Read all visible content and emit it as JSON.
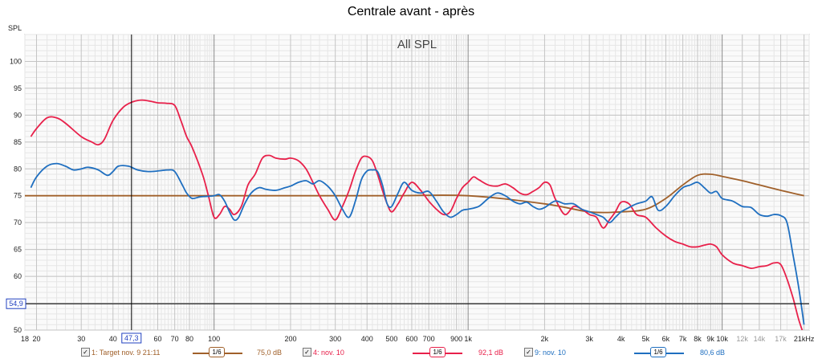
{
  "title": "Centrale avant - après",
  "chart_data": {
    "type": "line",
    "title": "Centrale avant - après",
    "subtitle": "All SPL",
    "ylabel": "SPL",
    "xlabel": "",
    "x_scale": "log",
    "x_unit_label": "Hz",
    "xlim": [
      18,
      22000
    ],
    "ylim": [
      50,
      105
    ],
    "grid": true,
    "y_ticks": [
      50,
      55,
      60,
      65,
      70,
      75,
      80,
      85,
      90,
      95,
      100
    ],
    "y_tick_labels": [
      "50",
      "55",
      "60",
      "65",
      "70",
      "75",
      "80",
      "85",
      "90",
      "95",
      "100"
    ],
    "x_ticks": [
      {
        "f": 18,
        "label": "18",
        "dim": false
      },
      {
        "f": 20,
        "label": "20",
        "dim": false
      },
      {
        "f": 30,
        "label": "30",
        "dim": false
      },
      {
        "f": 40,
        "label": "40",
        "dim": false
      },
      {
        "f": 60,
        "label": "60",
        "dim": false
      },
      {
        "f": 70,
        "label": "70",
        "dim": false
      },
      {
        "f": 80,
        "label": "80",
        "dim": false
      },
      {
        "f": 100,
        "label": "100",
        "dim": false
      },
      {
        "f": 200,
        "label": "200",
        "dim": false
      },
      {
        "f": 300,
        "label": "300",
        "dim": false
      },
      {
        "f": 400,
        "label": "400",
        "dim": false
      },
      {
        "f": 500,
        "label": "500",
        "dim": false
      },
      {
        "f": 600,
        "label": "600",
        "dim": false
      },
      {
        "f": 700,
        "label": "700",
        "dim": false
      },
      {
        "f": 900,
        "label": "900",
        "dim": false
      },
      {
        "f": 1000,
        "label": "1k",
        "dim": false
      },
      {
        "f": 2000,
        "label": "2k",
        "dim": false
      },
      {
        "f": 3000,
        "label": "3k",
        "dim": false
      },
      {
        "f": 4000,
        "label": "4k",
        "dim": false
      },
      {
        "f": 5000,
        "label": "5k",
        "dim": false
      },
      {
        "f": 6000,
        "label": "6k",
        "dim": false
      },
      {
        "f": 7000,
        "label": "7k",
        "dim": false
      },
      {
        "f": 8000,
        "label": "8k",
        "dim": false
      },
      {
        "f": 9000,
        "label": "9k",
        "dim": false
      },
      {
        "f": 10000,
        "label": "10k",
        "dim": false
      },
      {
        "f": 12000,
        "label": "12k",
        "dim": true
      },
      {
        "f": 14000,
        "label": "14k",
        "dim": true
      },
      {
        "f": 17000,
        "label": "17k",
        "dim": true
      },
      {
        "f": 21000,
        "label": "21kHz",
        "dim": false
      }
    ],
    "cursor": {
      "x": 47.3,
      "x_label": "47,3",
      "y": 54.9,
      "y_label": "54,9"
    },
    "series": [
      {
        "name": "1: Target nov. 9 21:11",
        "color": "#a0602a",
        "x": [
          18,
          20,
          30,
          50,
          100,
          200,
          500,
          1000,
          2000,
          3000,
          4000,
          5000,
          6000,
          7000,
          8000,
          9000,
          10000,
          12000,
          14000,
          17000,
          21000
        ],
        "y": [
          75,
          75,
          75,
          75,
          75,
          75,
          75,
          75,
          73.5,
          72,
          72,
          72.5,
          74.5,
          77,
          78.8,
          79,
          78.6,
          77.8,
          77,
          76,
          75
        ]
      },
      {
        "name": "4: nov. 10",
        "color": "#e8204a",
        "x": [
          19,
          20,
          22,
          24,
          26,
          30,
          33,
          35,
          37,
          40,
          44,
          48,
          52,
          56,
          60,
          65,
          70,
          74,
          78,
          82,
          90,
          95,
          100,
          105,
          110,
          115,
          120,
          128,
          136,
          145,
          155,
          165,
          175,
          190,
          200,
          215,
          230,
          245,
          260,
          280,
          300,
          320,
          340,
          360,
          380,
          400,
          420,
          440,
          460,
          480,
          500,
          530,
          560,
          600,
          650,
          700,
          750,
          800,
          850,
          900,
          950,
          1000,
          1050,
          1100,
          1200,
          1300,
          1400,
          1500,
          1600,
          1700,
          1800,
          1900,
          2000,
          2100,
          2200,
          2400,
          2600,
          2800,
          3000,
          3200,
          3400,
          3600,
          3800,
          4000,
          4300,
          4600,
          5000,
          5500,
          6000,
          6500,
          7000,
          7500,
          8000,
          8500,
          9000,
          9500,
          10000,
          11000,
          12000,
          13000,
          14000,
          15000,
          16000,
          17000,
          18000,
          19000,
          20000,
          21000
        ],
        "y": [
          86,
          87.5,
          89.5,
          89.5,
          88.5,
          86,
          85,
          84.5,
          85.5,
          89,
          91.5,
          92.5,
          92.8,
          92.6,
          92.3,
          92.2,
          91.8,
          89,
          86,
          84,
          79,
          75,
          71,
          71.5,
          73,
          72.5,
          71.5,
          73,
          77,
          79,
          82,
          82.5,
          82,
          81.8,
          82,
          81.5,
          80,
          77.5,
          75,
          72.5,
          70.5,
          73,
          76,
          79.5,
          82,
          82.3,
          81.5,
          79,
          76,
          73.5,
          72,
          73.5,
          75.5,
          77.5,
          76,
          74,
          72.5,
          71.5,
          72,
          74.5,
          76.5,
          77.5,
          78.5,
          78,
          77,
          76.8,
          77.2,
          76.5,
          75.5,
          75.2,
          75.8,
          76.5,
          77.5,
          77,
          74.5,
          71.5,
          73,
          72.5,
          71.5,
          71,
          69,
          70.5,
          72,
          73.8,
          73.5,
          71.5,
          71,
          69,
          67.5,
          66.5,
          66,
          65.5,
          65.5,
          65.8,
          66,
          65.5,
          64,
          62.5,
          62,
          61.5,
          61.8,
          62,
          62.5,
          62.2,
          59.5,
          56,
          52,
          49
        ]
      },
      {
        "name": "9: nov. 10",
        "color": "#1f6fc0",
        "x": [
          19,
          20,
          22,
          24,
          26,
          28,
          30,
          32,
          35,
          38,
          40,
          42,
          46,
          50,
          55,
          60,
          66,
          70,
          75,
          78,
          82,
          88,
          95,
          100,
          105,
          110,
          115,
          120,
          125,
          132,
          140,
          150,
          160,
          175,
          190,
          200,
          215,
          230,
          245,
          260,
          280,
          300,
          320,
          340,
          360,
          380,
          400,
          420,
          440,
          460,
          480,
          500,
          530,
          560,
          600,
          650,
          700,
          750,
          800,
          850,
          900,
          950,
          1000,
          1100,
          1200,
          1300,
          1400,
          1500,
          1600,
          1700,
          1800,
          1900,
          2000,
          2200,
          2400,
          2600,
          2800,
          3000,
          3200,
          3400,
          3600,
          3800,
          4000,
          4300,
          4600,
          5000,
          5300,
          5600,
          6000,
          6500,
          7000,
          7500,
          8000,
          8500,
          9000,
          9500,
          10000,
          11000,
          12000,
          13000,
          14000,
          15000,
          16000,
          17000,
          18000,
          19000,
          20000,
          21000
        ],
        "y": [
          76.5,
          78.5,
          80.5,
          81,
          80.5,
          79.8,
          80,
          80.3,
          79.8,
          78.8,
          79.5,
          80.5,
          80.5,
          79.8,
          79.5,
          79.6,
          79.8,
          79.5,
          77,
          75.5,
          74.5,
          74.8,
          74.9,
          75,
          75.2,
          74,
          72,
          70.5,
          71,
          73.5,
          75.5,
          76.5,
          76.2,
          76,
          76.5,
          76.8,
          77.5,
          77.8,
          77.2,
          77.8,
          76.8,
          75,
          72.5,
          71,
          74,
          78,
          79.6,
          79.8,
          79.5,
          77,
          73.5,
          73,
          75.5,
          77.5,
          76,
          75.5,
          75.8,
          74,
          72,
          71,
          71.5,
          72.3,
          72.5,
          73,
          74.5,
          75.5,
          75,
          74,
          73.5,
          73.8,
          73,
          72.5,
          72.8,
          74,
          73.5,
          73.5,
          72.5,
          72,
          71.5,
          71,
          70,
          71,
          72,
          72.8,
          73.5,
          74,
          74.8,
          72.3,
          73,
          75,
          76.5,
          77,
          77.5,
          76.5,
          75.5,
          75.8,
          74.5,
          74,
          73,
          72.8,
          71.5,
          71.2,
          71.5,
          71.3,
          70,
          64,
          58,
          51
        ]
      }
    ]
  },
  "legend": [
    {
      "label": "1: Target nov. 9 21:11",
      "color": "#a0602a",
      "smoothing": "1/6",
      "level": "75,0 dB",
      "checked": true
    },
    {
      "label": "4: nov. 10",
      "color": "#e8204a",
      "smoothing": "1/6",
      "level": "92,1 dB",
      "checked": true
    },
    {
      "label": "9: nov. 10",
      "color": "#1f6fc0",
      "smoothing": "1/6",
      "level": "80,6 dB",
      "checked": true
    }
  ]
}
